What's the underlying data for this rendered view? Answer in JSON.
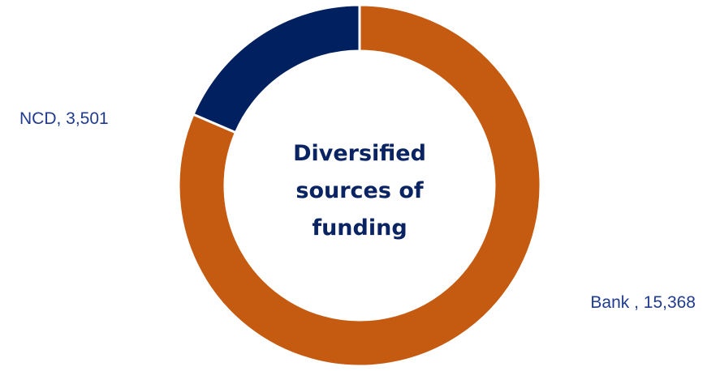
{
  "chart_data": {
    "type": "pie",
    "variant": "donut",
    "title": "",
    "center_text_lines": [
      "Diversified",
      "sources of",
      "funding"
    ],
    "slices": [
      {
        "name": "Bank ",
        "value": 15368,
        "label": "Bank , 15,368",
        "color": "#c55a11"
      },
      {
        "name": "NCD",
        "value": 3501,
        "label": "NCD, 3,501",
        "color": "#002060"
      }
    ],
    "legend": "none",
    "start_angle": "12 o'clock, clockwise"
  }
}
